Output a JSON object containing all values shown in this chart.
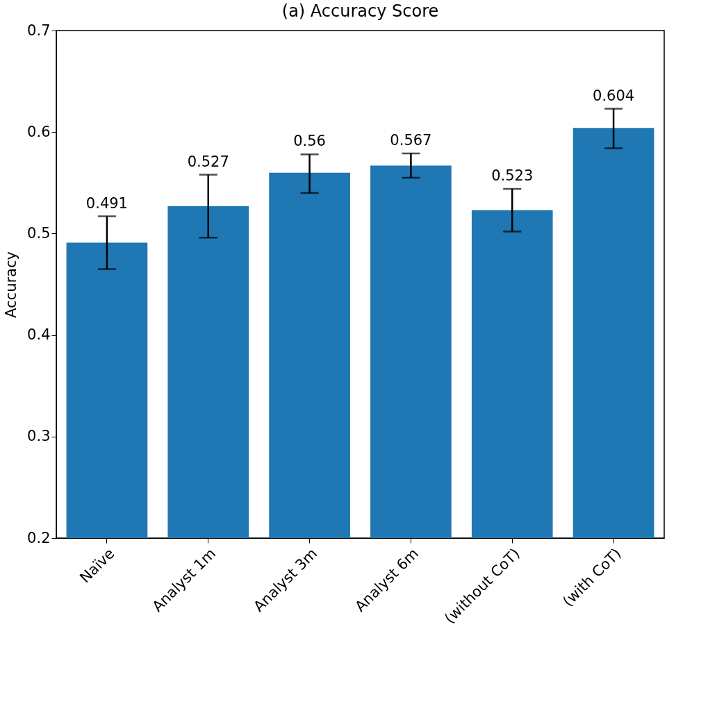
{
  "chart_data": {
    "type": "bar",
    "title": "(a) Accuracy Score",
    "ylabel": "Accuracy",
    "categories": [
      "Naïve",
      "Analyst 1m",
      "Analyst 3m",
      "Analyst 6m",
      "(without CoT)",
      "(with CoT)"
    ],
    "values": [
      0.491,
      0.527,
      0.56,
      0.567,
      0.523,
      0.604
    ],
    "errors": [
      [
        0.465,
        0.517
      ],
      [
        0.496,
        0.558
      ],
      [
        0.54,
        0.578
      ],
      [
        0.555,
        0.579
      ],
      [
        0.502,
        0.544
      ],
      [
        0.584,
        0.623
      ]
    ],
    "color": "#1f77b4",
    "ylim": [
      0.2,
      0.7
    ],
    "yticks": [
      0.2,
      0.3,
      0.4,
      0.5,
      0.6,
      0.7
    ],
    "data_labels": true,
    "grid": false
  }
}
